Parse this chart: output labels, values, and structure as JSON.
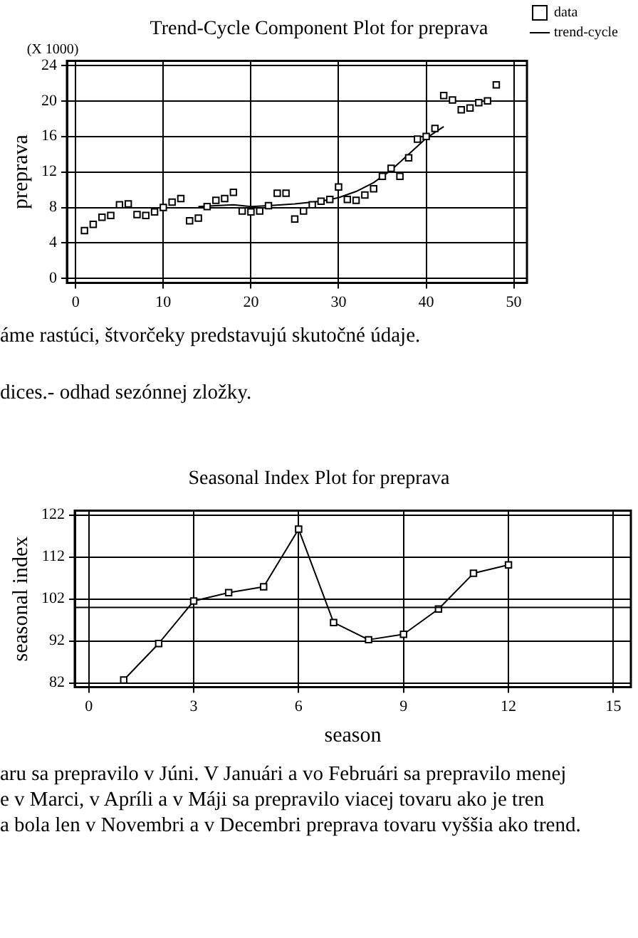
{
  "chart_data": [
    {
      "type": "scatter",
      "title": "Trend-Cycle Component Plot for preprava",
      "ylabel": "preprava",
      "xlim": [
        -1,
        51.5
      ],
      "xticks": [
        0,
        10,
        20,
        30,
        40,
        50
      ],
      "ylim": [
        -0.5,
        24.5
      ],
      "yticks": [
        0,
        4,
        8,
        12,
        16,
        20,
        24
      ],
      "grid": true,
      "legend": "right",
      "annotations": [
        "(X 1000)",
        "áme rastúci, štvorčeky predstavujú skutočné údaje.",
        "dices.- odhad sezónnej zložky."
      ],
      "series": [
        {
          "name": "data",
          "type": "scatter",
          "marker": "square",
          "color": "#000000",
          "x": [
            1,
            2,
            3,
            4,
            5,
            6,
            7,
            8,
            9,
            10,
            11,
            12,
            13,
            14,
            15,
            16,
            17,
            18,
            19,
            20,
            21,
            22,
            23,
            24,
            25,
            26,
            27,
            28,
            29,
            30,
            31,
            32,
            33,
            34,
            35,
            36,
            37,
            38,
            39,
            40,
            41,
            42,
            43,
            44,
            45,
            46,
            47,
            48
          ],
          "values": [
            5.4,
            6.1,
            6.9,
            7.1,
            8.3,
            8.4,
            7.2,
            7.1,
            7.5,
            8.0,
            8.6,
            9.0,
            6.5,
            6.8,
            8.1,
            8.8,
            9.0,
            9.7,
            7.6,
            7.5,
            7.6,
            8.2,
            9.6,
            9.6,
            6.7,
            7.6,
            8.3,
            8.7,
            8.9,
            10.3,
            8.9,
            8.8,
            9.4,
            10.1,
            11.5,
            12.4,
            11.5,
            13.6,
            15.7,
            16.0,
            16.9,
            20.6,
            20.1,
            19.0,
            19.2,
            19.8,
            20.0,
            21.8
          ]
        },
        {
          "name": "trend-cycle",
          "type": "line",
          "marker": "none",
          "color": "#000000",
          "x": [
            14,
            16,
            18,
            20,
            22,
            25,
            28,
            30,
            32,
            34,
            36,
            38,
            40,
            42
          ],
          "values": [
            8.1,
            8.2,
            8.3,
            8.1,
            8.2,
            8.4,
            8.7,
            9.1,
            9.8,
            10.8,
            12.2,
            14.0,
            15.8,
            17.1
          ]
        }
      ]
    },
    {
      "type": "line",
      "title": "Seasonal Index Plot for preprava",
      "xlabel": "season",
      "ylabel": "seasonal index",
      "xlim": [
        -0.4,
        15.5
      ],
      "xticks": [
        0,
        3,
        6,
        9,
        12,
        15
      ],
      "ylim": [
        81,
        123
      ],
      "yticks": [
        82,
        92,
        102,
        112,
        122
      ],
      "grid": true,
      "marker": "square",
      "ref_lines": [
        {
          "axis": "y",
          "value": 100
        }
      ],
      "annotations": [
        "aru sa prepravilo v Júni. V Januári  a vo Februári sa prepravilo menej",
        "e  v Marci, v Apríli a v Máji sa prepravilo viacej tovaru ako je tren",
        "a bola len v Novembri a v Decembri preprava tovaru vyššia ako trend."
      ],
      "series": [
        {
          "color": "#000000",
          "x": [
            1,
            2,
            3,
            4,
            5,
            6,
            7,
            8,
            9,
            10,
            11,
            12
          ],
          "values": [
            82.7,
            91.4,
            101.5,
            103.5,
            104.9,
            118.6,
            96.4,
            92.3,
            93.6,
            99.6,
            108.1,
            110.1
          ]
        }
      ]
    }
  ]
}
